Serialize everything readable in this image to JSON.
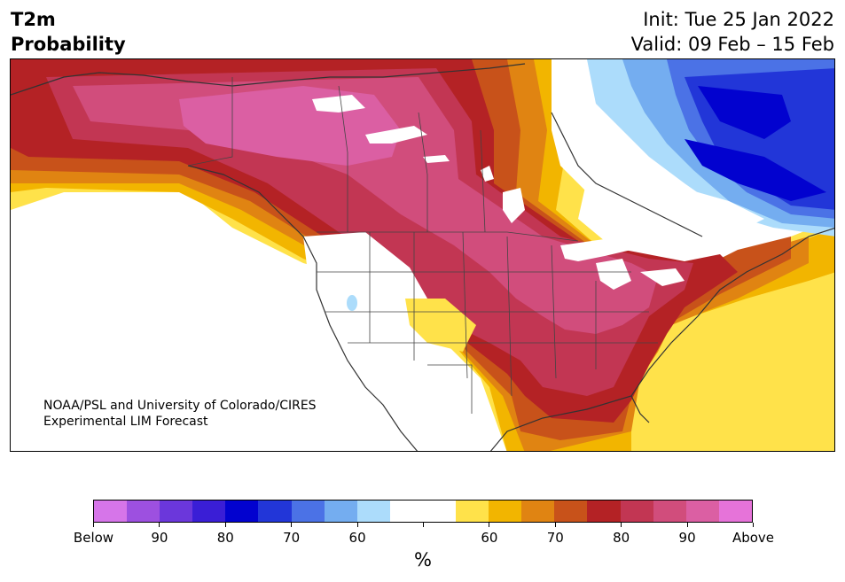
{
  "title": {
    "left_line1": "T2m",
    "left_line2": "Probability",
    "right_line1": "Init: Tue 25 Jan 2022",
    "right_line2": "Valid: 09 Feb – 15 Feb"
  },
  "credit": {
    "line1": "NOAA/PSL and University of Colorado/CIRES",
    "line2": "Experimental LIM Forecast"
  },
  "colorbar": {
    "colors": [
      "#d675e9",
      "#9d50e0",
      "#6b37db",
      "#3a1ed6",
      "#0202cf",
      "#2236d8",
      "#4b72e6",
      "#74adf0",
      "#acdcfb",
      "#ffffff",
      "#ffffff",
      "#ffe24a",
      "#f2b500",
      "#e08412",
      "#c8521a",
      "#b42225",
      "#c23653",
      "#d14d7c",
      "#db5fa3",
      "#e673d9"
    ],
    "tick_labels": [
      "Below",
      "90",
      "80",
      "70",
      "60",
      "",
      "60",
      "70",
      "80",
      "90",
      "Above"
    ],
    "unit": "%"
  },
  "map": {
    "region": "North America",
    "variable": "2m temperature probability"
  }
}
